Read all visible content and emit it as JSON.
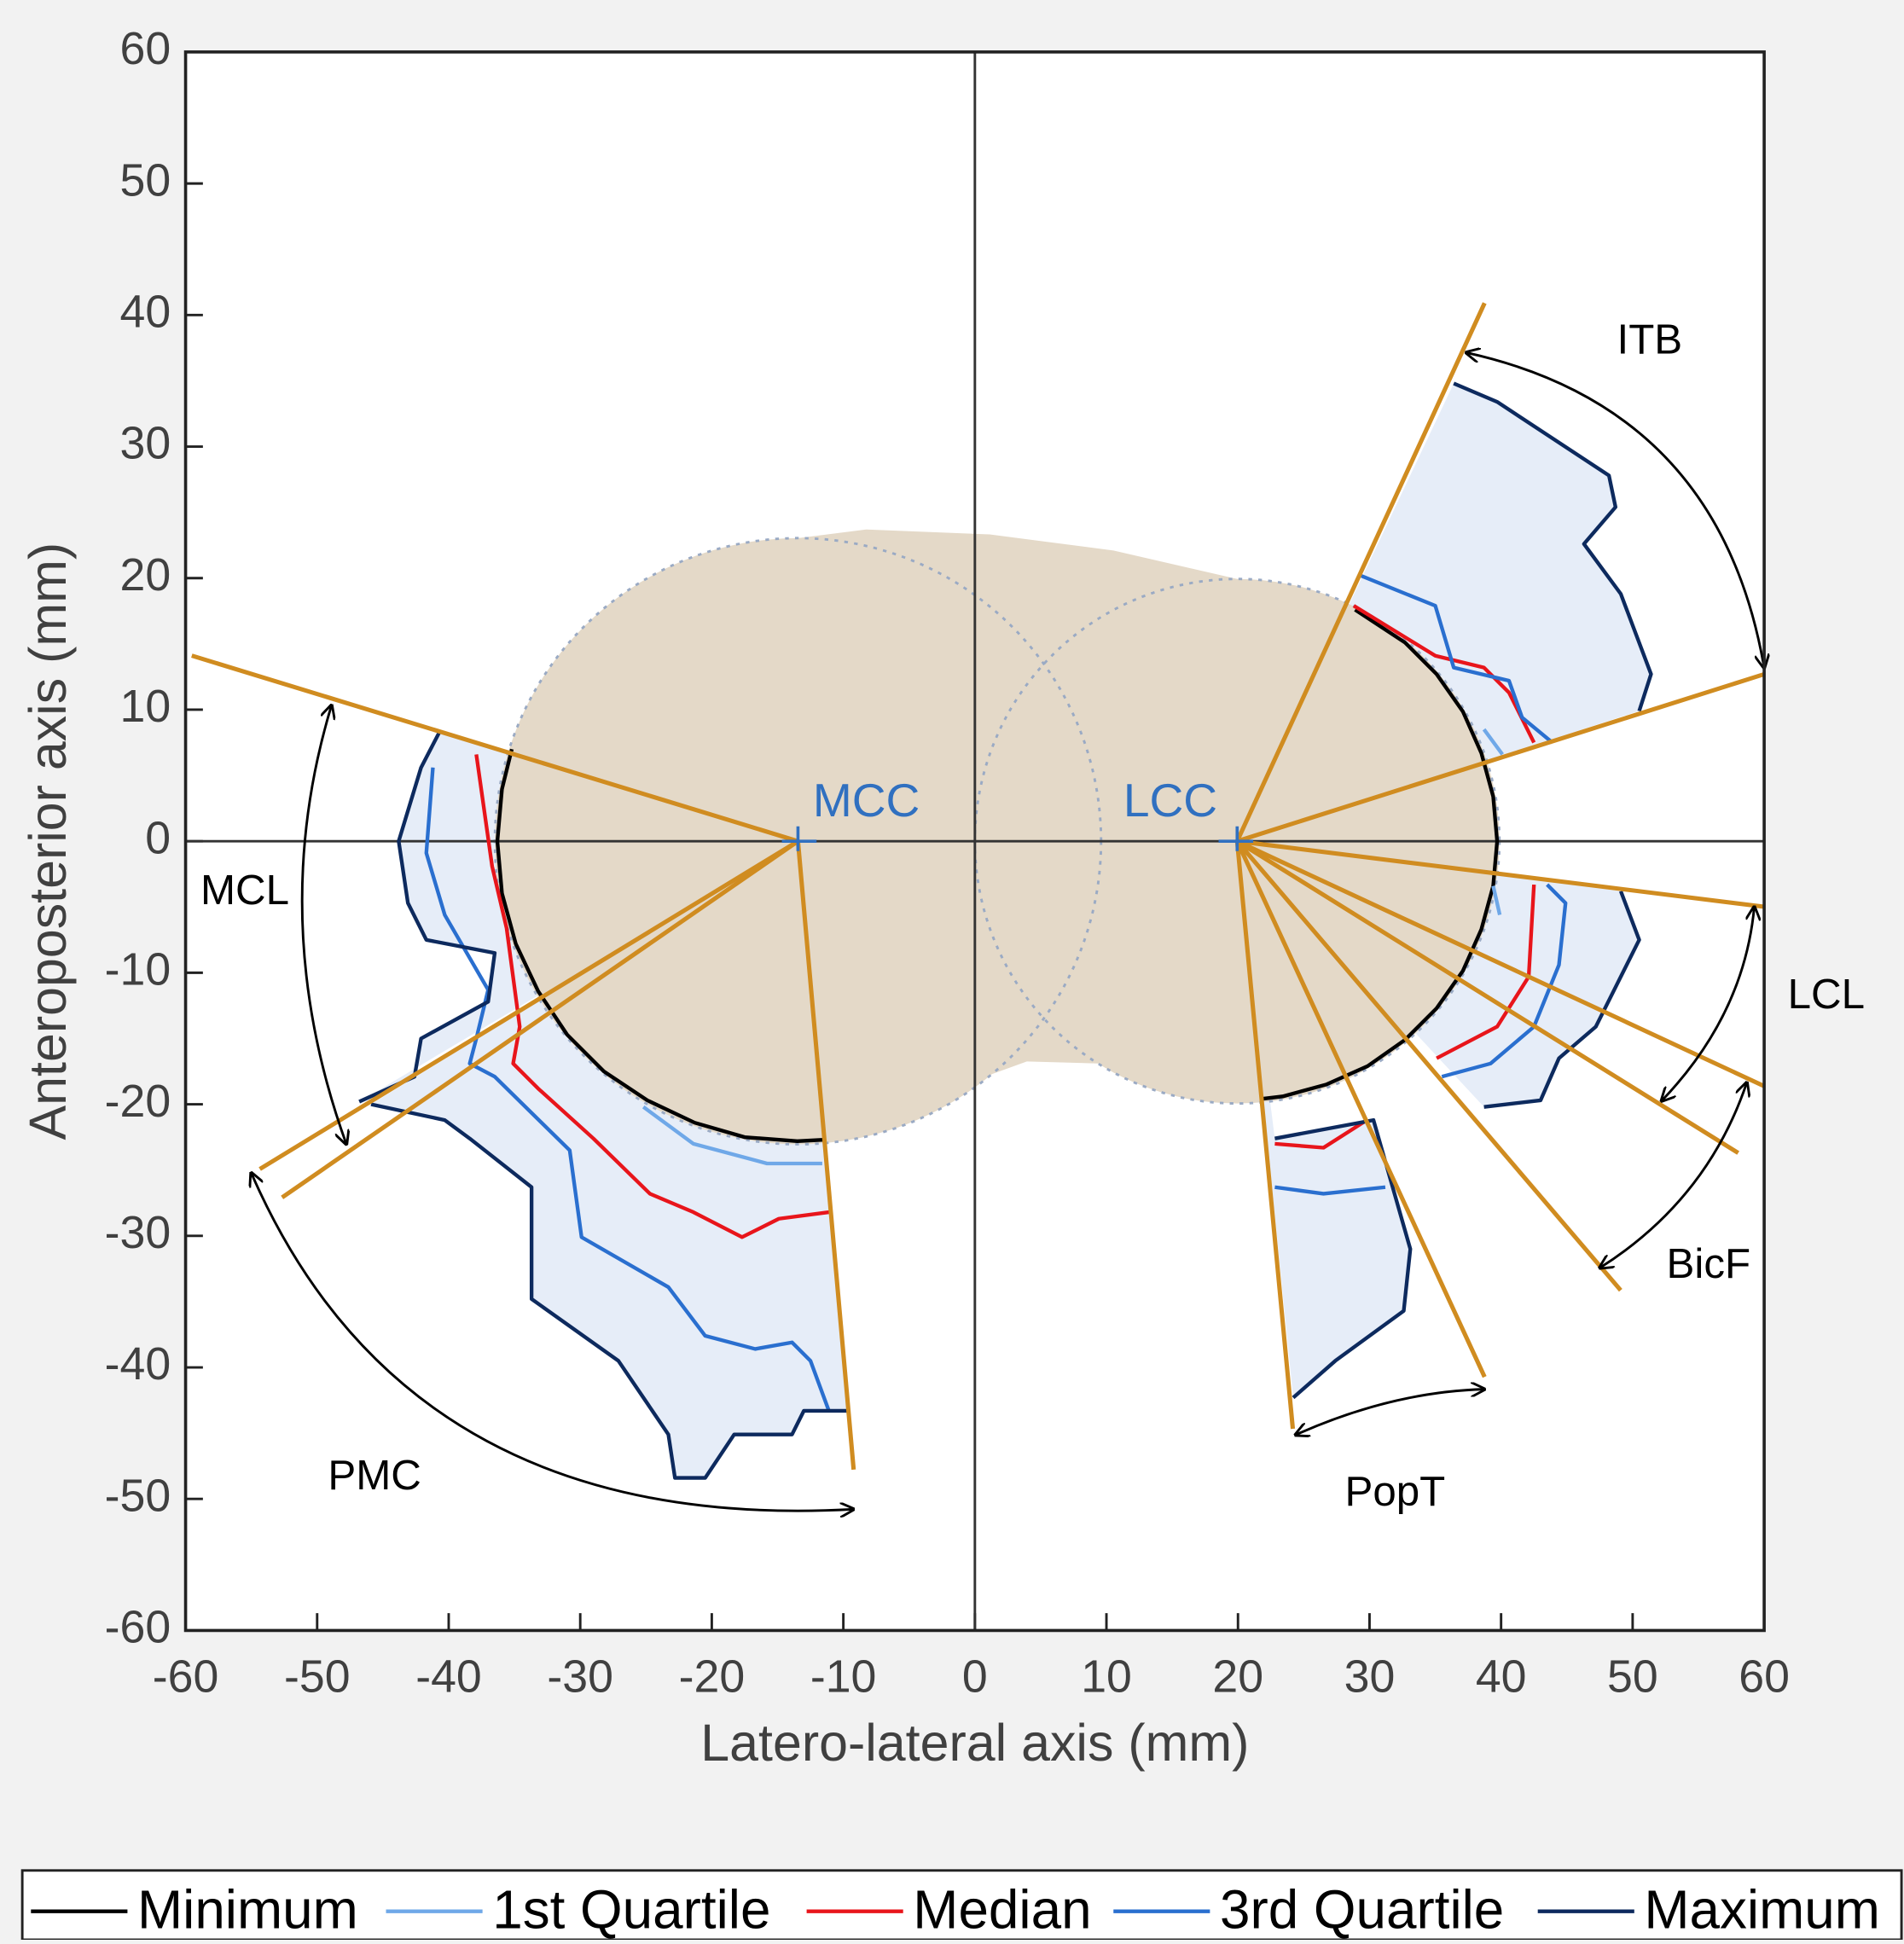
{
  "chart_data": {
    "type": "line",
    "xlabel": "Latero-lateral axis (mm)",
    "ylabel": "Anteroposterior axis (mm)",
    "xlim": [
      -60,
      60
    ],
    "ylim": [
      -60,
      60
    ],
    "xticks": [
      -60,
      -50,
      -40,
      -30,
      -20,
      -10,
      0,
      10,
      20,
      30,
      40,
      50,
      60
    ],
    "yticks": [
      -60,
      -50,
      -40,
      -30,
      -20,
      -10,
      0,
      10,
      20,
      30,
      40,
      50,
      60
    ],
    "annotations": [
      "MCC",
      "LCC",
      "MCL",
      "PMC",
      "ITB",
      "LCL",
      "BicF",
      "PopT"
    ],
    "legend": "bottom",
    "series": [
      {
        "name": "Minimum",
        "color": "#000000",
        "x": [
          -35.2,
          -35.95,
          -36.3,
          -35.95,
          -34.9,
          -33.2,
          -31.0,
          -28.2,
          -24.9,
          -21.3,
          -17.5,
          -13.5,
          -11.5,
          null,
          28.9,
          32.7,
          35.1,
          37.1,
          38.5,
          39.4,
          39.7,
          39.4,
          38.5,
          37.1,
          35.1,
          32.7,
          29.85,
          26.7,
          23.4,
          21.7
        ],
        "values": [
          7.0,
          3.96,
          0,
          -3.96,
          -7.8,
          -11.4,
          -14.7,
          -17.5,
          -19.7,
          -21.4,
          -22.5,
          -22.8,
          -22.7,
          null,
          17.6,
          15.1,
          12.7,
          9.85,
          6.7,
          3.4,
          0,
          -3.4,
          -6.7,
          -9.85,
          -12.7,
          -15.1,
          -17.1,
          -18.5,
          -19.4,
          -19.6
        ]
      },
      {
        "name": "1st Quartile",
        "color": "#6fa8e8",
        "x": [
          -25.2,
          -21.4,
          -15.8,
          -11.6,
          null,
          38.7,
          40.1,
          null,
          39.4,
          39.9
        ],
        "values": [
          -20.2,
          -23,
          -24.5,
          -24.5,
          null,
          8.5,
          6.6,
          null,
          -3.4,
          -5.6
        ]
      },
      {
        "name": "Median",
        "color": "#e8151b",
        "x": [
          -37.9,
          -36.7,
          -35.6,
          -34.6,
          -35.1,
          -33.2,
          -29,
          -24.7,
          -21.4,
          -17.7,
          -14.9,
          -11.1,
          null,
          28.8,
          35,
          38.7,
          40.6,
          42.5,
          null,
          42.5,
          42.1,
          39.7,
          35.1,
          null,
          22.8,
          26.5,
          29.8
        ],
        "values": [
          6.6,
          -1.9,
          -6.6,
          -14.1,
          -16.9,
          -18.8,
          -22.6,
          -26.8,
          -28.2,
          -30.1,
          -28.7,
          -28.2,
          null,
          17.9,
          14.1,
          13.2,
          11.3,
          7.5,
          null,
          -3.3,
          -10.3,
          -14.1,
          -16.5,
          null,
          -23,
          -23.3,
          -21.2
        ]
      },
      {
        "name": "3rd Quartile",
        "color": "#2a6fcf",
        "x": [
          -41.2,
          -41.7,
          -40.3,
          -37,
          -37.9,
          -38.4,
          -36.5,
          -30.8,
          -29.9,
          -23.3,
          -20.5,
          -16.7,
          -13.9,
          -12.5,
          -11.1,
          null,
          29.3,
          35,
          36.4,
          40.6,
          41.6,
          43.9,
          null,
          43.5,
          44.9,
          44.4,
          42.5,
          39.2,
          35.5,
          null,
          22.8,
          26.5,
          31.2
        ],
        "values": [
          5.6,
          -0.9,
          -5.6,
          -11.3,
          -15,
          -16.9,
          -17.9,
          -23.5,
          -30.1,
          -33.9,
          -37.6,
          -38.6,
          -38.1,
          -39.5,
          -43.3,
          null,
          20.2,
          17.9,
          13.2,
          12.2,
          9.4,
          7.5,
          null,
          -3.3,
          -4.7,
          -9.4,
          -14.1,
          -16.9,
          -17.9,
          null,
          -26.3,
          -26.8,
          -26.3
        ]
      },
      {
        "name": "Maximum",
        "color": "#0d2a5e",
        "x": [
          -40.7,
          -42.1,
          -43.8,
          -43.1,
          -41.7,
          -36.5,
          -37,
          -42.1,
          -42.6,
          -46.8,
          null,
          -45.9,
          -40.3,
          -38.4,
          -33.7,
          -33.7,
          -27.1,
          -23.3,
          -22.8,
          -20.5,
          -18.3,
          -13.9,
          -13,
          -9.7,
          null,
          36.4,
          39.7,
          48.2,
          48.7,
          46.3,
          49.1,
          51.4,
          50.5,
          null,
          49.1,
          50.5,
          48.6,
          47.2,
          44.4,
          43,
          38.7,
          null,
          22.8,
          30.3,
          33.1,
          32.6,
          27.4,
          24.2
        ],
        "values": [
          8.3,
          5.6,
          0,
          -4.7,
          -7.5,
          -8.5,
          -12.2,
          -15,
          -17.9,
          -19.8,
          null,
          -20,
          -21.2,
          -22.6,
          -26.3,
          -34.8,
          -39.5,
          -45.1,
          -48.4,
          -48.4,
          -45.1,
          -45.1,
          -43.3,
          -43.3,
          null,
          34.8,
          33.4,
          27.8,
          25.4,
          22.6,
          18.8,
          12.7,
          9.9,
          null,
          -3.8,
          -7.5,
          -11.3,
          -14.1,
          -16.5,
          -19.7,
          -20.2,
          null,
          -22.6,
          -21.2,
          -31,
          -35.7,
          -39.5,
          -42.3
        ]
      }
    ]
  }
}
